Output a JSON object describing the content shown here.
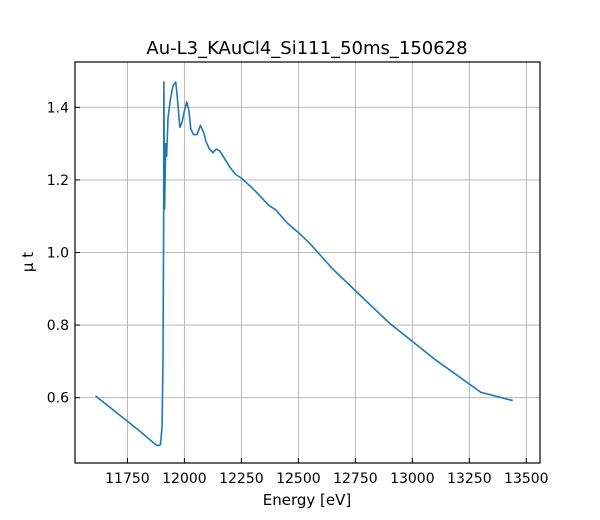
{
  "chart_data": {
    "type": "line",
    "title": "Au-L3_KAuCl4_Si111_50ms_150628",
    "xlabel": "Energy [eV]",
    "ylabel": "μ t",
    "xlim": [
      11520,
      13560
    ],
    "ylim": [
      0.42,
      1.525
    ],
    "grid": true,
    "x_ticks": [
      11750,
      12000,
      12250,
      12500,
      12750,
      13000,
      13250,
      13500
    ],
    "y_ticks": [
      0.6,
      0.8,
      1.0,
      1.2,
      1.4
    ],
    "x_tick_labels": [
      "11750",
      "12000",
      "12250",
      "12500",
      "12750",
      "13000",
      "13250",
      "13500"
    ],
    "y_tick_labels": [
      "0.6",
      "0.8",
      "1.0",
      "1.2",
      "1.4"
    ],
    "series": [
      {
        "color": "#1f77b4",
        "x": [
          11610,
          11700,
          11800,
          11860,
          11880,
          11895,
          11902,
          11906,
          11909,
          11910,
          11912,
          11913,
          11918,
          11922,
          11928,
          11938,
          11950,
          11962,
          11970,
          11980,
          11990,
          12000,
          12010,
          12020,
          12028,
          12040,
          12055,
          12070,
          12085,
          12095,
          12110,
          12125,
          12140,
          12155,
          12170,
          12185,
          12200,
          12225,
          12250,
          12280,
          12310,
          12340,
          12370,
          12400,
          12450,
          12500,
          12550,
          12600,
          12650,
          12700,
          12800,
          12900,
          13000,
          13100,
          13200,
          13300,
          13440
        ],
        "y": [
          0.605,
          0.56,
          0.51,
          0.478,
          0.468,
          0.47,
          0.52,
          0.7,
          1.1,
          1.47,
          1.2,
          1.12,
          1.3,
          1.265,
          1.37,
          1.42,
          1.46,
          1.47,
          1.42,
          1.345,
          1.36,
          1.39,
          1.415,
          1.39,
          1.34,
          1.325,
          1.325,
          1.35,
          1.33,
          1.305,
          1.285,
          1.275,
          1.285,
          1.28,
          1.265,
          1.25,
          1.235,
          1.215,
          1.205,
          1.188,
          1.17,
          1.15,
          1.13,
          1.118,
          1.082,
          1.055,
          1.025,
          0.99,
          0.955,
          0.925,
          0.865,
          0.805,
          0.755,
          0.705,
          0.66,
          0.615,
          0.592
        ]
      }
    ]
  }
}
